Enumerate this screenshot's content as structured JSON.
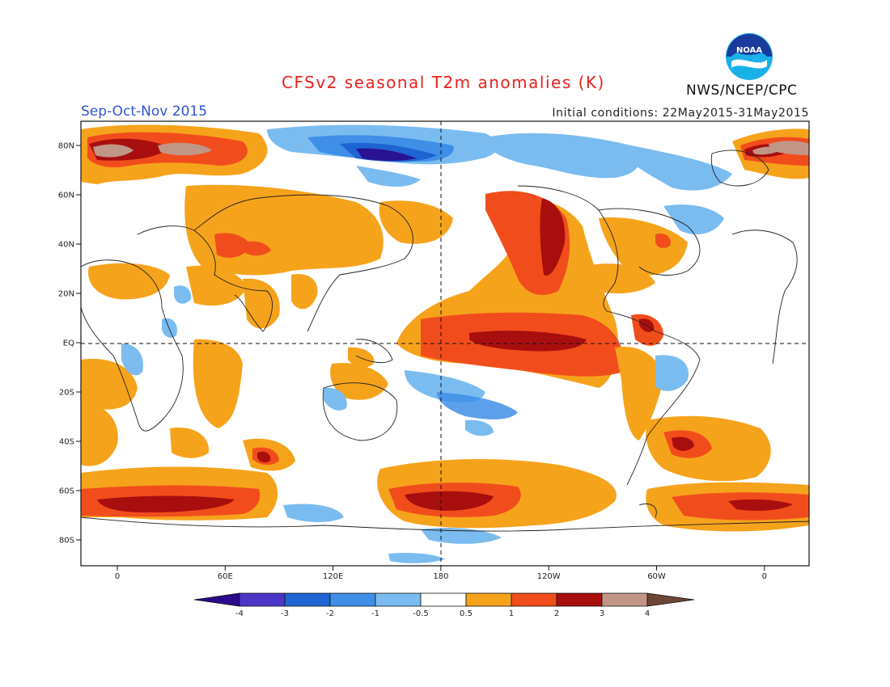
{
  "title": "CFSv2 seasonal T2m anomalies (K)",
  "season": "Sep-Oct-Nov 2015",
  "initial_conditions": "Initial conditions: 22May2015-31May2015",
  "agency": "NWS/NCEP/CPC",
  "logo_text": "NOAA",
  "lat_labels": [
    "80N",
    "60N",
    "40N",
    "20N",
    "EQ",
    "20S",
    "40S",
    "60S",
    "80S"
  ],
  "lon_labels": [
    "0",
    "60E",
    "120E",
    "180",
    "120W",
    "60W",
    "0"
  ],
  "colorbar": {
    "ticks": [
      "-4",
      "-3",
      "-2",
      "-1",
      "-0.5",
      "0.5",
      "1",
      "2",
      "3",
      "4"
    ],
    "colors": [
      "#2a0a8c",
      "#4b35c6",
      "#1e64d2",
      "#3f8fe8",
      "#7bbcf0",
      "#ffffff",
      "#f6a31c",
      "#f14d1c",
      "#a90e0e",
      "#c29686",
      "#6e4534"
    ]
  },
  "colors": {
    "title": "#e8211c",
    "season": "#2f55d9",
    "warm_light": "#f6a31c",
    "warm_mid": "#f14d1c",
    "warm_dark": "#a90e0e",
    "cool_light": "#7bbcf0",
    "cool_mid": "#3f8fe8",
    "cool_dark": "#2a0a8c"
  }
}
